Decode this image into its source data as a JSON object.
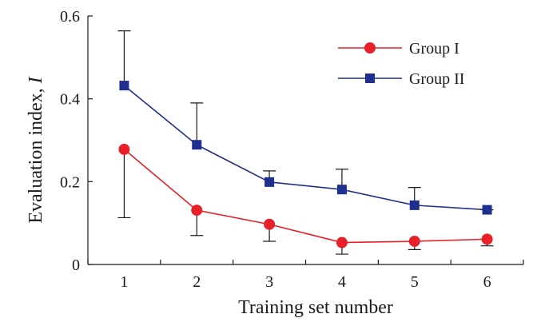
{
  "chart_data": {
    "type": "line",
    "xlabel": "Training set number",
    "ylabel_text": "Evaluation index, ",
    "ylabel_var": "I",
    "categories": [
      "1",
      "2",
      "3",
      "4",
      "5",
      "6"
    ],
    "x": [
      1,
      2,
      3,
      4,
      5,
      6
    ],
    "xlim": [
      0.5,
      6.5
    ],
    "ylim": [
      0,
      0.6
    ],
    "yticks": [
      0,
      0.2,
      0.4,
      0.6
    ],
    "ytick_labels": [
      "0",
      "0.2",
      "0.4",
      "0.6"
    ],
    "grid": false,
    "legend_position": "top-right",
    "series": [
      {
        "name": "Group I",
        "marker": "circle",
        "color": "#e8202a",
        "values": [
          0.278,
          0.131,
          0.097,
          0.053,
          0.056,
          0.061
        ],
        "error_lower": [
          0.113,
          0.07,
          0.056,
          0.025,
          0.036,
          0.045
        ]
      },
      {
        "name": "Group II",
        "marker": "square",
        "color": "#1f2f8f",
        "values": [
          0.432,
          0.289,
          0.199,
          0.181,
          0.143,
          0.132
        ],
        "error_upper": [
          0.564,
          0.39,
          0.226,
          0.23,
          0.186,
          0.132
        ]
      }
    ]
  }
}
